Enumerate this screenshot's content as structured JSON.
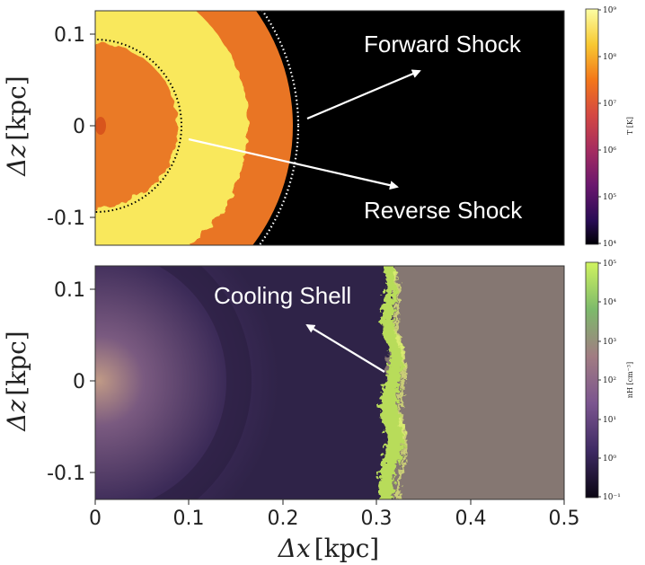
{
  "top_panel": {
    "yticks": [
      "0.1",
      "0",
      "-0.1"
    ],
    "ylabel_symbol": "Δz",
    "ylabel_unit": "[kpc]",
    "annotations": {
      "forward_shock": "Forward Shock",
      "reverse_shock": "Reverse Shock"
    },
    "colorbar": {
      "label": "T [K]",
      "ticks": [
        "10⁹",
        "10⁸",
        "10⁷",
        "10⁶",
        "10⁵",
        "10⁴"
      ]
    }
  },
  "bottom_panel": {
    "yticks": [
      "0.1",
      "0",
      "-0.1"
    ],
    "ylabel_symbol": "Δz",
    "ylabel_unit": "[kpc]",
    "xticks": [
      "0",
      "0.1",
      "0.2",
      "0.3",
      "0.4",
      "0.5"
    ],
    "xlabel_symbol": "Δx",
    "xlabel_unit": "[kpc]",
    "annotations": {
      "cooling_shell": "Cooling Shell"
    },
    "colorbar": {
      "label": "nH [cm⁻³]",
      "ticks": [
        "10⁵",
        "10⁴",
        "10³",
        "10²",
        "10¹",
        "10⁰",
        "10⁻¹"
      ]
    }
  },
  "colors": {
    "hot_yellow": "#f9e85c",
    "shell_orange": "#e97524",
    "ambient_dark": "#000000",
    "cooling_green": "#b8dc5a",
    "ambient_gray": "#857772",
    "interior_purple": "#4e3775"
  }
}
